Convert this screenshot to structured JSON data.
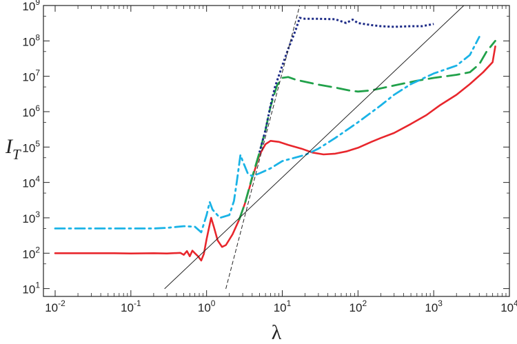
{
  "chart_data": {
    "type": "line",
    "title": "",
    "xlabel": "λ",
    "ylabel": {
      "base": "I",
      "subscript": "T"
    },
    "xscale": "log",
    "yscale": "log",
    "xlim": [
      0.007,
      10000
    ],
    "ylim": [
      6,
      1000000000
    ],
    "grid": false,
    "legend": "none",
    "xticks": [
      {
        "value": 0.01,
        "base": "10",
        "exp": "-2"
      },
      {
        "value": 0.1,
        "base": "10",
        "exp": "-1"
      },
      {
        "value": 1,
        "base": "10",
        "exp": "0"
      },
      {
        "value": 10,
        "base": "10",
        "exp": "1"
      },
      {
        "value": 100,
        "base": "10",
        "exp": "2"
      },
      {
        "value": 1000,
        "base": "10",
        "exp": "3"
      },
      {
        "value": 10000,
        "base": "10",
        "exp": "4"
      }
    ],
    "yticks": [
      {
        "value": 10,
        "base": "10",
        "exp": "1"
      },
      {
        "value": 100,
        "base": "10",
        "exp": "2"
      },
      {
        "value": 1000,
        "base": "10",
        "exp": "3"
      },
      {
        "value": 10000,
        "base": "10",
        "exp": "4"
      },
      {
        "value": 100000,
        "base": "10",
        "exp": "5"
      },
      {
        "value": 1000000,
        "base": "10",
        "exp": "6"
      },
      {
        "value": 10000000,
        "base": "10",
        "exp": "7"
      },
      {
        "value": 100000000,
        "base": "10",
        "exp": "8"
      },
      {
        "value": 1000000000,
        "base": "10",
        "exp": "9"
      }
    ],
    "series": [
      {
        "color": "#e8262c",
        "dash": "solid",
        "width": 2.6,
        "points": [
          [
            0.01,
            100
          ],
          [
            0.03,
            100
          ],
          [
            0.06,
            100
          ],
          [
            0.1,
            98
          ],
          [
            0.2,
            100
          ],
          [
            0.3,
            98
          ],
          [
            0.45,
            102
          ],
          [
            0.5,
            90
          ],
          [
            0.55,
            115
          ],
          [
            0.6,
            82
          ],
          [
            0.65,
            118
          ],
          [
            0.7,
            100
          ],
          [
            0.78,
            80
          ],
          [
            0.85,
            62
          ],
          [
            0.92,
            95
          ],
          [
            1.0,
            250
          ],
          [
            1.1,
            650
          ],
          [
            1.15,
            1000
          ],
          [
            1.25,
            550
          ],
          [
            1.4,
            230
          ],
          [
            1.6,
            150
          ],
          [
            1.8,
            170
          ],
          [
            2.2,
            340
          ],
          [
            2.7,
            900
          ],
          [
            3.2,
            2500
          ],
          [
            4.0,
            13000
          ],
          [
            5.0,
            60000
          ],
          [
            6.0,
            120000
          ],
          [
            7.0,
            150000
          ],
          [
            9.0,
            140000
          ],
          [
            12,
            115000
          ],
          [
            18,
            90000
          ],
          [
            25,
            70000
          ],
          [
            35,
            62000
          ],
          [
            50,
            65000
          ],
          [
            70,
            75000
          ],
          [
            100,
            95000
          ],
          [
            150,
            140000
          ],
          [
            200,
            180000
          ],
          [
            300,
            250000
          ],
          [
            500,
            450000
          ],
          [
            800,
            800000
          ],
          [
            1200,
            1500000
          ],
          [
            2000,
            3000000
          ],
          [
            3000,
            6000000
          ],
          [
            4500,
            13000000
          ],
          [
            6000,
            25000000
          ],
          [
            6500,
            70000000
          ]
        ]
      },
      {
        "color": "#21a14a",
        "dash": "longdash",
        "width": 2.8,
        "points": [
          [
            2.7,
            900
          ],
          [
            3.2,
            2500
          ],
          [
            4.0,
            14000
          ],
          [
            5.0,
            70000
          ],
          [
            6.0,
            300000
          ],
          [
            7.0,
            1400000
          ],
          [
            8.5,
            5500000
          ],
          [
            10,
            9000000
          ],
          [
            12,
            9500000
          ],
          [
            15,
            8000000
          ],
          [
            20,
            7000000
          ],
          [
            30,
            5800000
          ],
          [
            50,
            4800000
          ],
          [
            80,
            3900000
          ],
          [
            100,
            3700000
          ],
          [
            150,
            4000000
          ],
          [
            300,
            5500000
          ],
          [
            600,
            7500000
          ],
          [
            1000,
            9000000
          ],
          [
            2000,
            11000000
          ],
          [
            3000,
            13000000
          ],
          [
            4000,
            22000000
          ],
          [
            5000,
            50000000
          ],
          [
            6500,
            100000000
          ]
        ]
      },
      {
        "color": "#1c2a86",
        "dash": "dotted",
        "width": 3,
        "points": [
          [
            5.0,
            70000
          ],
          [
            6.0,
            300000
          ],
          [
            7.0,
            1500000
          ],
          [
            8.0,
            5000000
          ],
          [
            10,
            20000000
          ],
          [
            12,
            60000000
          ],
          [
            15,
            200000000
          ],
          [
            17,
            450000000
          ],
          [
            20,
            420000000
          ],
          [
            30,
            420000000
          ],
          [
            50,
            410000000
          ],
          [
            70,
            320000000
          ],
          [
            85,
            400000000
          ],
          [
            100,
            320000000
          ],
          [
            150,
            280000000
          ],
          [
            200,
            260000000
          ],
          [
            300,
            250000000
          ],
          [
            500,
            260000000
          ],
          [
            700,
            260000000
          ],
          [
            1000,
            300000000
          ]
        ]
      },
      {
        "color": "#1ab3e6",
        "dash": "dashdot",
        "width": 2.8,
        "points": [
          [
            0.01,
            500
          ],
          [
            0.05,
            500
          ],
          [
            0.1,
            500
          ],
          [
            0.2,
            500
          ],
          [
            0.3,
            520
          ],
          [
            0.5,
            580
          ],
          [
            0.7,
            560
          ],
          [
            0.85,
            390
          ],
          [
            1.0,
            1200
          ],
          [
            1.1,
            2800
          ],
          [
            1.2,
            1700
          ],
          [
            1.5,
            1000
          ],
          [
            2.0,
            1200
          ],
          [
            2.3,
            3000
          ],
          [
            2.5,
            10000
          ],
          [
            2.8,
            60000
          ],
          [
            3.0,
            40000
          ],
          [
            3.5,
            18000
          ],
          [
            4.0,
            15000
          ],
          [
            5.0,
            18000
          ],
          [
            7.0,
            25000
          ],
          [
            10,
            40000
          ],
          [
            20,
            60000
          ],
          [
            30,
            90000
          ],
          [
            50,
            180000
          ],
          [
            100,
            500000
          ],
          [
            200,
            1500000
          ],
          [
            300,
            3000000
          ],
          [
            500,
            6000000
          ],
          [
            1000,
            12000000
          ],
          [
            2000,
            20000000
          ],
          [
            3000,
            40000000
          ],
          [
            4000,
            130000000
          ]
        ]
      },
      {
        "color": "#222222",
        "dash": "solid",
        "width": 1,
        "points": [
          [
            0.28,
            10
          ],
          [
            2500,
            1000000000
          ]
        ]
      },
      {
        "color": "#222222",
        "dash": "shortdash",
        "width": 1,
        "points": [
          [
            1.8,
            10
          ],
          [
            17,
            1000000000
          ]
        ]
      }
    ]
  }
}
